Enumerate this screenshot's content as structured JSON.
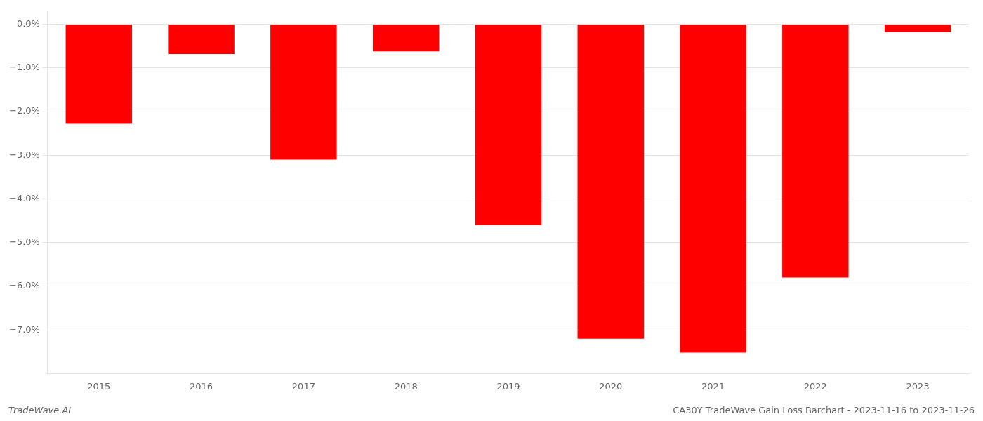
{
  "chart_data": {
    "type": "bar",
    "categories": [
      "2015",
      "2016",
      "2017",
      "2018",
      "2019",
      "2020",
      "2021",
      "2022",
      "2023"
    ],
    "values": [
      -2.28,
      -0.68,
      -3.1,
      -0.62,
      -4.6,
      -7.2,
      -7.52,
      -5.8,
      -0.18
    ],
    "color": "#ff0000",
    "ylim": [
      -8.0,
      0.3
    ],
    "yticks": [
      {
        "value": 0.0,
        "label": "0.0%"
      },
      {
        "value": -1.0,
        "label": "−1.0%"
      },
      {
        "value": -2.0,
        "label": "−2.0%"
      },
      {
        "value": -3.0,
        "label": "−3.0%"
      },
      {
        "value": -4.0,
        "label": "−4.0%"
      },
      {
        "value": -5.0,
        "label": "−5.0%"
      },
      {
        "value": -6.0,
        "label": "−6.0%"
      },
      {
        "value": -7.0,
        "label": "−7.0%"
      }
    ],
    "grid": true,
    "annotations": [
      "TradeWave.AI",
      "CA30Y TradeWave Gain Loss Barchart - 2023-11-16 to 2023-11-26"
    ]
  }
}
